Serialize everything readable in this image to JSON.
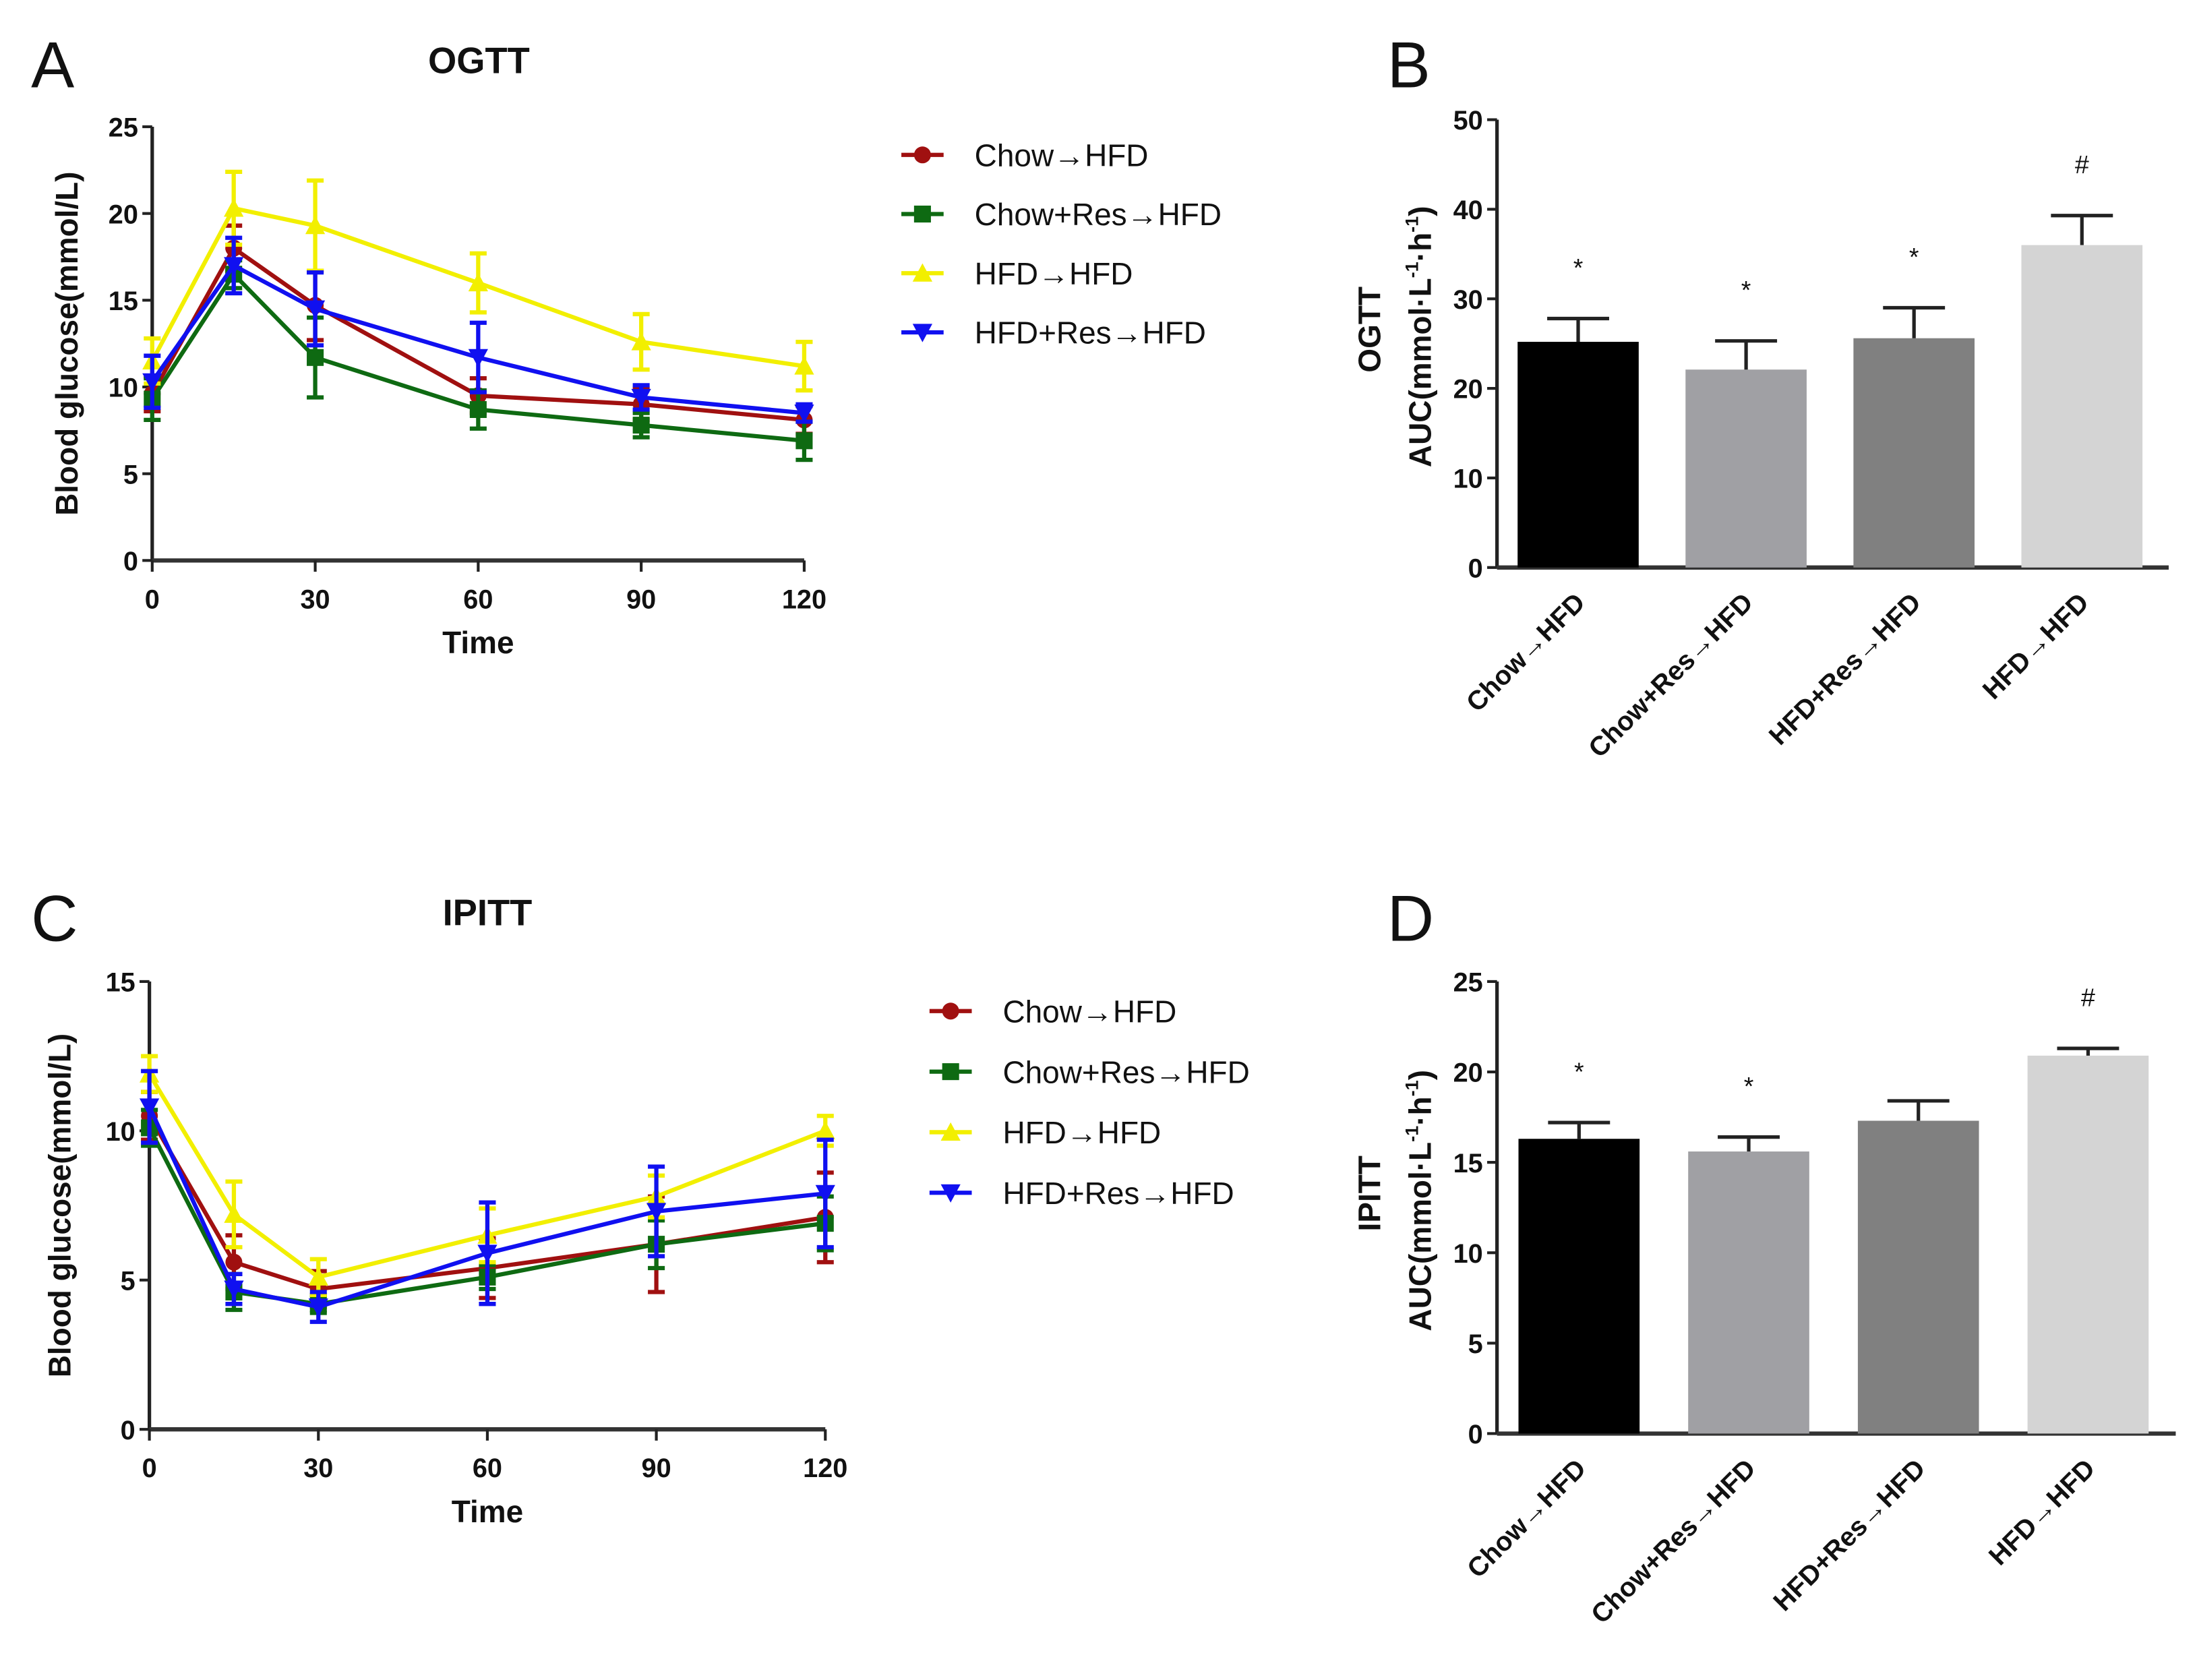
{
  "chart_data": [
    {
      "panel": "A",
      "type": "line",
      "title": "OGTT",
      "xlabel": "Time",
      "ylabel": "Blood glucose(mmol/L)",
      "xlim": [
        0,
        120
      ],
      "ylim": [
        0,
        25
      ],
      "xticks": [
        0,
        30,
        60,
        90,
        120
      ],
      "yticks": [
        0,
        5,
        10,
        15,
        20,
        25
      ],
      "x": [
        0,
        15,
        30,
        60,
        90,
        120
      ],
      "legend_position": "right",
      "series": [
        {
          "name": "Chow→HFD",
          "color": "#a01010",
          "marker": "circle",
          "values": [
            9.6,
            18.0,
            14.7,
            9.5,
            9.0,
            8.1
          ],
          "errors": [
            1.0,
            1.3,
            2.0,
            1.0,
            0.9,
            0.8
          ]
        },
        {
          "name": "Chow+Res→HFD",
          "color": "#0e6a12",
          "marker": "square",
          "values": [
            9.3,
            16.5,
            11.7,
            8.7,
            7.8,
            6.9
          ],
          "errors": [
            1.2,
            0.8,
            2.3,
            1.1,
            0.7,
            1.1
          ]
        },
        {
          "name": "HFD→HFD",
          "color": "#f2ef00",
          "marker": "triangle-up",
          "values": [
            11.5,
            20.3,
            19.3,
            16.0,
            12.6,
            11.2
          ],
          "errors": [
            1.3,
            2.1,
            2.6,
            1.7,
            1.6,
            1.4
          ]
        },
        {
          "name": "HFD+Res→HFD",
          "color": "#1010f0",
          "marker": "triangle-down",
          "values": [
            10.3,
            17.0,
            14.5,
            11.7,
            9.4,
            8.5
          ],
          "errors": [
            1.5,
            1.6,
            2.1,
            2.0,
            0.7,
            0.5
          ]
        }
      ]
    },
    {
      "panel": "B",
      "type": "bar",
      "ylabel_line1": "OGTT",
      "ylabel_line2": "AUC(mmol·L",
      "ylabel_unit_exp": "-1",
      "ylabel_mid": "·h",
      "ylabel_end": ")",
      "ylim": [
        0,
        50
      ],
      "yticks": [
        0,
        10,
        20,
        30,
        40,
        50
      ],
      "categories": [
        "Chow→HFD",
        "Chow+Res→HFD",
        "HFD+Res→HFD",
        "HFD→HFD"
      ],
      "values": [
        25.2,
        22.1,
        25.6,
        36.0
      ],
      "errors": [
        2.6,
        3.2,
        3.4,
        3.3
      ],
      "colors": [
        "#000000",
        "#a0a0a4",
        "#808080",
        "#d4d4d4"
      ],
      "annotations": [
        "*",
        "*",
        "*",
        "#"
      ]
    },
    {
      "panel": "C",
      "type": "line",
      "title": "IPITT",
      "xlabel": "Time",
      "ylabel": "Blood glucose(mmol/L)",
      "xlim": [
        0,
        120
      ],
      "ylim": [
        0,
        15
      ],
      "xticks": [
        0,
        30,
        60,
        90,
        120
      ],
      "yticks": [
        0,
        5,
        10,
        15
      ],
      "x": [
        0,
        15,
        30,
        60,
        90,
        120
      ],
      "legend_position": "right",
      "series": [
        {
          "name": "Chow→HFD",
          "color": "#a01010",
          "marker": "circle",
          "values": [
            10.5,
            5.6,
            4.7,
            5.4,
            6.2,
            7.1
          ],
          "errors": [
            0.8,
            0.9,
            0.6,
            1.0,
            1.6,
            1.5
          ]
        },
        {
          "name": "Chow+Res→HFD",
          "color": "#0e6a12",
          "marker": "square",
          "values": [
            10.1,
            4.6,
            4.2,
            5.1,
            6.2,
            6.9
          ],
          "errors": [
            0.6,
            0.6,
            0.3,
            0.4,
            0.8,
            0.9
          ]
        },
        {
          "name": "HFD→HFD",
          "color": "#f2ef00",
          "marker": "triangle-up",
          "values": [
            11.9,
            7.2,
            5.1,
            6.5,
            7.8,
            10.0
          ],
          "errors": [
            0.6,
            1.1,
            0.6,
            0.9,
            0.7,
            0.5
          ]
        },
        {
          "name": "HFD+Res→HFD",
          "color": "#1010f0",
          "marker": "triangle-down",
          "values": [
            10.8,
            4.7,
            4.1,
            5.9,
            7.3,
            7.9
          ],
          "errors": [
            1.2,
            0.5,
            0.5,
            1.7,
            1.5,
            1.8
          ]
        }
      ]
    },
    {
      "panel": "D",
      "type": "bar",
      "ylabel_line1": "IPITT",
      "ylabel_line2": "AUC(mmol·L",
      "ylabel_unit_exp": "-1",
      "ylabel_mid": "·h",
      "ylabel_end": ")",
      "ylim": [
        0,
        25
      ],
      "yticks": [
        0,
        5,
        10,
        15,
        20,
        25
      ],
      "categories": [
        "Chow→HFD",
        "Chow+Res→HFD",
        "HFD+Res→HFD",
        "HFD→HFD"
      ],
      "values": [
        16.3,
        15.6,
        17.3,
        20.9
      ],
      "errors": [
        0.9,
        0.8,
        1.1,
        0.4
      ],
      "colors": [
        "#000000",
        "#a0a0a4",
        "#808080",
        "#d4d4d4"
      ],
      "annotations": [
        "*",
        "*",
        "",
        "#"
      ]
    }
  ]
}
